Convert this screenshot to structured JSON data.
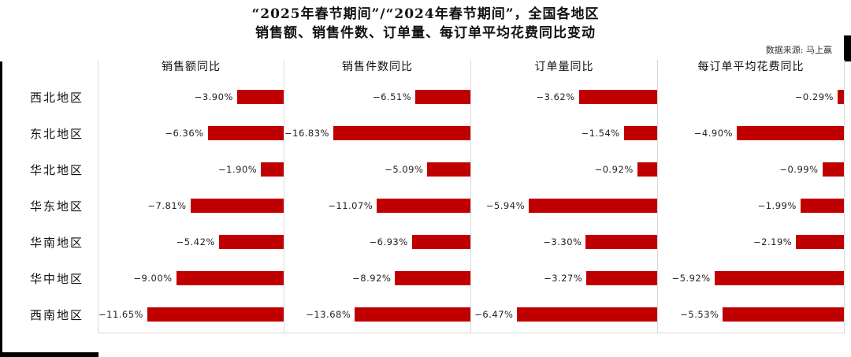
{
  "title": {
    "line1": "“2025年春节期间”/“2024年春节期间”，全国各地区",
    "line2": "销售额、销售件数、订单量、每订单平均花费同比变动"
  },
  "source": "数据来源: 马上赢",
  "colors": {
    "bar": "#C00000",
    "axis": "#D9D9D9",
    "frame": "#000000"
  },
  "chart_data": {
    "type": "bar",
    "orientation": "horizontal",
    "title": "“2025年春节期间”/“2024年春节期间”，全国各地区销售额、销售件数、订单量、每订单平均花费同比变动",
    "unit": "%",
    "grid": "off",
    "legend": "none",
    "bar_color": "#C00000",
    "categories": [
      "西北地区",
      "东北地区",
      "华北地区",
      "华东地区",
      "华南地区",
      "华中地区",
      "西南地区"
    ],
    "panels": [
      {
        "title": "销售额同比",
        "values": [
          -3.9,
          -6.36,
          -1.9,
          -7.81,
          -5.42,
          -9.0,
          -11.65
        ],
        "labels": [
          "−3.90%",
          "−6.36%",
          "−1.90%",
          "−7.81%",
          "−5.42%",
          "−9.00%",
          "−11.65%"
        ],
        "xlim": [
          -15.5,
          0
        ]
      },
      {
        "title": "销售件数同比",
        "values": [
          -6.51,
          -16.83,
          -5.09,
          -11.07,
          -6.93,
          -8.92,
          -13.68
        ],
        "labels": [
          "−6.51%",
          "−16.83%",
          "−5.09%",
          "−11.07%",
          "−6.93%",
          "−8.92%",
          "−13.68%"
        ],
        "xlim": [
          -22,
          0
        ]
      },
      {
        "title": "订单量同比",
        "values": [
          -3.62,
          -1.54,
          -0.92,
          -5.94,
          -3.3,
          -3.27,
          -6.47
        ],
        "labels": [
          "−3.62%",
          "−1.54%",
          "−0.92%",
          "−5.94%",
          "−3.30%",
          "−3.27%",
          "−6.47%"
        ],
        "xlim": [
          -8.6,
          0
        ]
      },
      {
        "title": "每订单平均花费同比",
        "values": [
          -0.29,
          -4.9,
          -0.99,
          -1.99,
          -2.19,
          -5.92,
          -5.53
        ],
        "labels": [
          "−0.29%",
          "−4.90%",
          "−0.99%",
          "−1.99%",
          "−2.19%",
          "−5.92%",
          "−5.53%"
        ],
        "xlim": [
          -8.5,
          0
        ]
      }
    ]
  }
}
